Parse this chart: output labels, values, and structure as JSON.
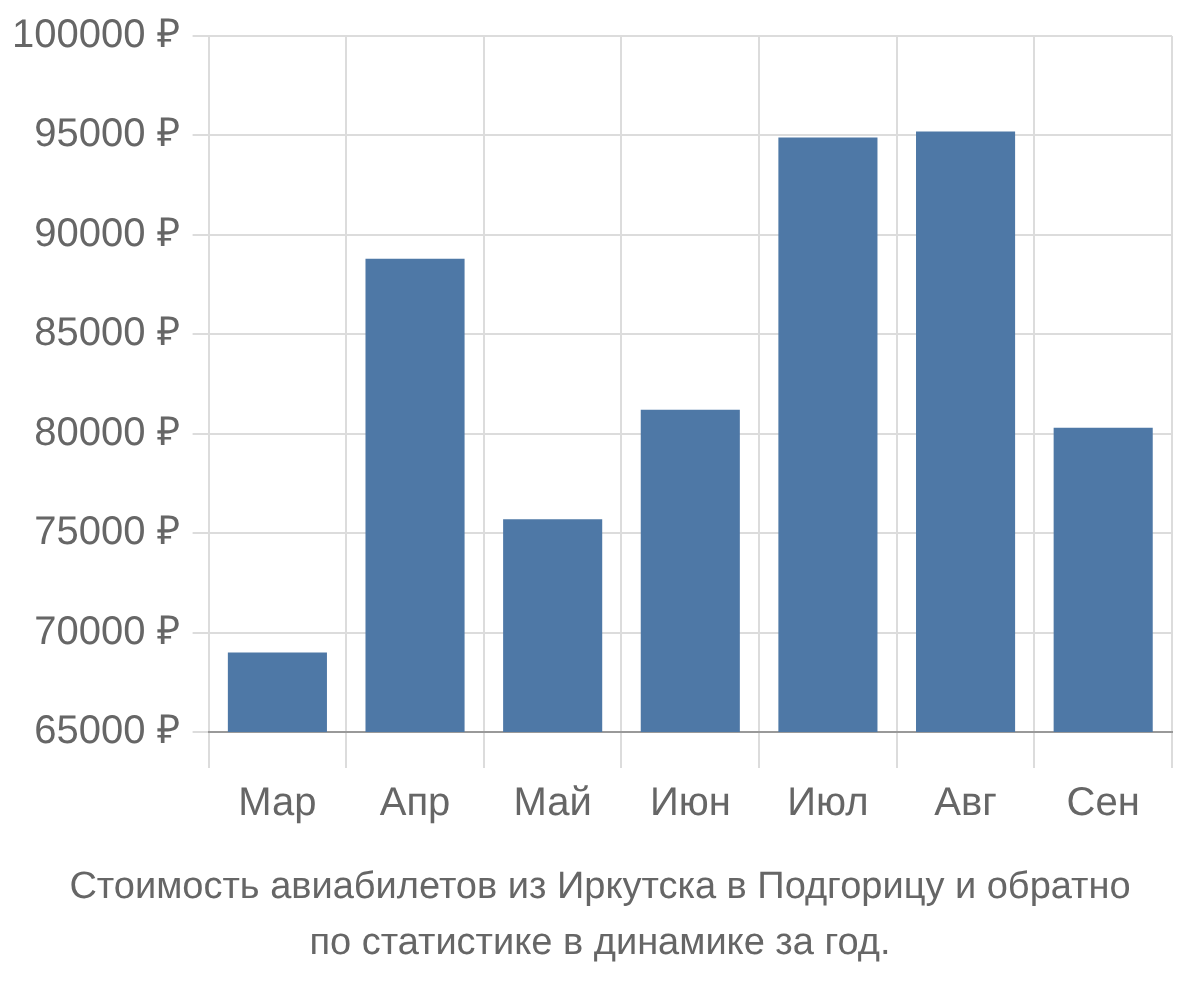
{
  "chart_data": {
    "type": "bar",
    "categories": [
      "Мар",
      "Апр",
      "Май",
      "Июн",
      "Июл",
      "Авг",
      "Сен"
    ],
    "values": [
      69000,
      88800,
      75700,
      81200,
      94900,
      95200,
      80300
    ],
    "color": "#4e78a6",
    "ylim": [
      65000,
      100000
    ],
    "yticks": [
      {
        "value": 65000,
        "label": "65000 ₽"
      },
      {
        "value": 70000,
        "label": "70000 ₽"
      },
      {
        "value": 75000,
        "label": "75000 ₽"
      },
      {
        "value": 80000,
        "label": "80000 ₽"
      },
      {
        "value": 85000,
        "label": "85000 ₽"
      },
      {
        "value": 90000,
        "label": "90000 ₽"
      },
      {
        "value": 95000,
        "label": "95000 ₽"
      },
      {
        "value": 100000,
        "label": "100000 ₽"
      }
    ],
    "grid": true,
    "legend": false,
    "annotations": [
      "Стоимость авиабилетов из Иркутска в Подгорицу и обратно",
      "по статистике в динамике за год."
    ]
  }
}
